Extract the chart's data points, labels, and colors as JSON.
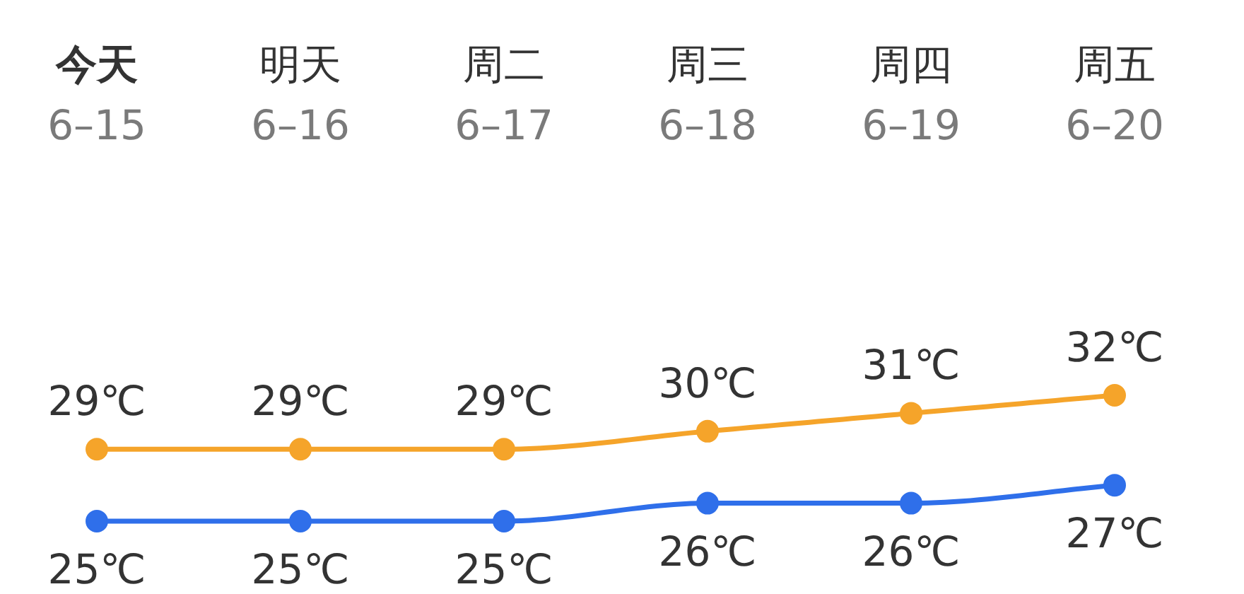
{
  "chart_data": {
    "type": "line",
    "categories": [
      "今天\n6–15",
      "明天\n6–16",
      "周二\n6–17",
      "周三\n6–18",
      "周四\n6–19",
      "周五\n6–20"
    ],
    "series": [
      {
        "color": "#f5a42a",
        "values": [
          29,
          29,
          29,
          30,
          31,
          32
        ],
        "value_labels": [
          "29℃",
          "29℃",
          "29℃",
          "30℃",
          "31℃",
          "32℃"
        ]
      },
      {
        "color": "#2f6fea",
        "values": [
          25,
          25,
          25,
          26,
          26,
          27
        ],
        "value_labels": [
          "25℃",
          "25℃",
          "25℃",
          "26℃",
          "26℃",
          "27℃"
        ]
      }
    ],
    "marker": "circle",
    "line_style": "solid",
    "tick_labels": "x"
  }
}
